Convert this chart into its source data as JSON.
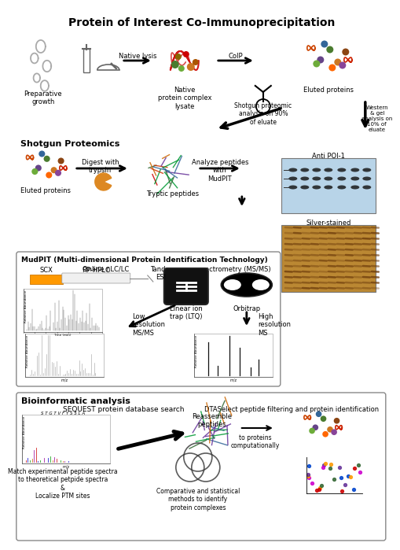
{
  "title": "Protein of Interest Co-Immunoprecipitation",
  "section2_title": "Shotgun Proteomics",
  "section3_title": "MudPIT (Multi-dimensional Protein Identification Technology)",
  "section4_title": "Bioinformatic analysis",
  "bg_color": "#ffffff",
  "title_fontsize": 10,
  "section_fontsize": 8,
  "annotation_fontsize": 6,
  "small_fontsize": 5,
  "border_color": "#888888",
  "s1_arrow1_label": "Native lysis",
  "s1_arrow2_label": "CoIP",
  "s1_native_label": "Native\nprotein complex\nlysate",
  "s1_eluted_label": "Eluted proteins",
  "s1_prep_label": "Preparative\ngrowth",
  "s1_shotgun_label": "Shotgun proteomic\nanalysis on 90%\nof eluate",
  "s1_western_label": "Western\n& gel\nanalysis on\n10% of\neluate",
  "s2_digest_label": "Digest with\ntrypsin",
  "s2_tryptic_label": "Tryptic peptides",
  "s2_analyze_label": "Analyze peptides\nwith\nMudPIT",
  "s2_eluted_label": "Eluted proteins",
  "s3_online_label": "Online nLC/LC",
  "s3_tandem_label": "Tandem mass spectrometry (MS/MS)",
  "s3_scx_label": "SCX",
  "s3_rphplc_label": "RP-HPLC",
  "s3_esi_label": "ESI",
  "s3_ltq_label": "Linear ion\ntrap (LTQ)",
  "s3_orbitrap_label": "Orbitrap",
  "s3_lowres_label": "Low\nresolution\nMS/MS",
  "s3_highres_label": "High\nresolution\nMS",
  "s3_timemin_label": "Time (min)",
  "s3_mz1_label": "m/z",
  "s3_mz2_label": "m/z",
  "s4_sequest_label": "SEQUEST protein database search",
  "s4_dta_label": "DTASelect peptide filtering and protein identification",
  "s4_reassemble_label": "Reassemble\npeptides",
  "s4_toproteins_label": "to proteins\ncomputationally",
  "s4_compare_label": "Comparative and statistical\nmethods to identify\nprotein complexes",
  "s4_match_label": "Match experimental peptide spectra\nto theoretical petpide spectra\n&\nLocalize PTM sites",
  "s4_mz_label": "m/z",
  "anti_label": "Anti POI-1",
  "silver_label": "Silver-stained",
  "rel_abund_label": "Relative Abundance"
}
